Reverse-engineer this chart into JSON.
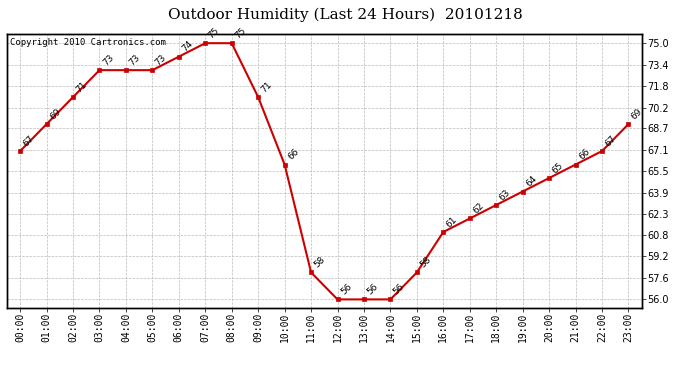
{
  "title": "Outdoor Humidity (Last 24 Hours)  20101218",
  "copyright": "Copyright 2010 Cartronics.com",
  "hours": [
    "00:00",
    "01:00",
    "02:00",
    "03:00",
    "04:00",
    "05:00",
    "06:00",
    "07:00",
    "08:00",
    "09:00",
    "10:00",
    "11:00",
    "12:00",
    "13:00",
    "14:00",
    "15:00",
    "16:00",
    "17:00",
    "18:00",
    "19:00",
    "20:00",
    "21:00",
    "22:00",
    "23:00"
  ],
  "values": [
    67,
    69,
    71,
    73,
    73,
    73,
    74,
    75,
    75,
    71,
    66,
    58,
    56,
    56,
    56,
    58,
    61,
    62,
    63,
    64,
    65,
    66,
    67,
    69
  ],
  "ylim_low": 55.4,
  "ylim_high": 75.7,
  "yticks": [
    56.0,
    57.6,
    59.2,
    60.8,
    62.3,
    63.9,
    65.5,
    67.1,
    68.7,
    70.2,
    71.8,
    73.4,
    75.0
  ],
  "line_color": "#cc0000",
  "marker_color": "#cc0000",
  "bg_color": "#ffffff",
  "grid_color": "#bbbbbb",
  "title_fontsize": 11,
  "label_fontsize": 7,
  "annot_fontsize": 6.5,
  "copyright_fontsize": 6.5
}
